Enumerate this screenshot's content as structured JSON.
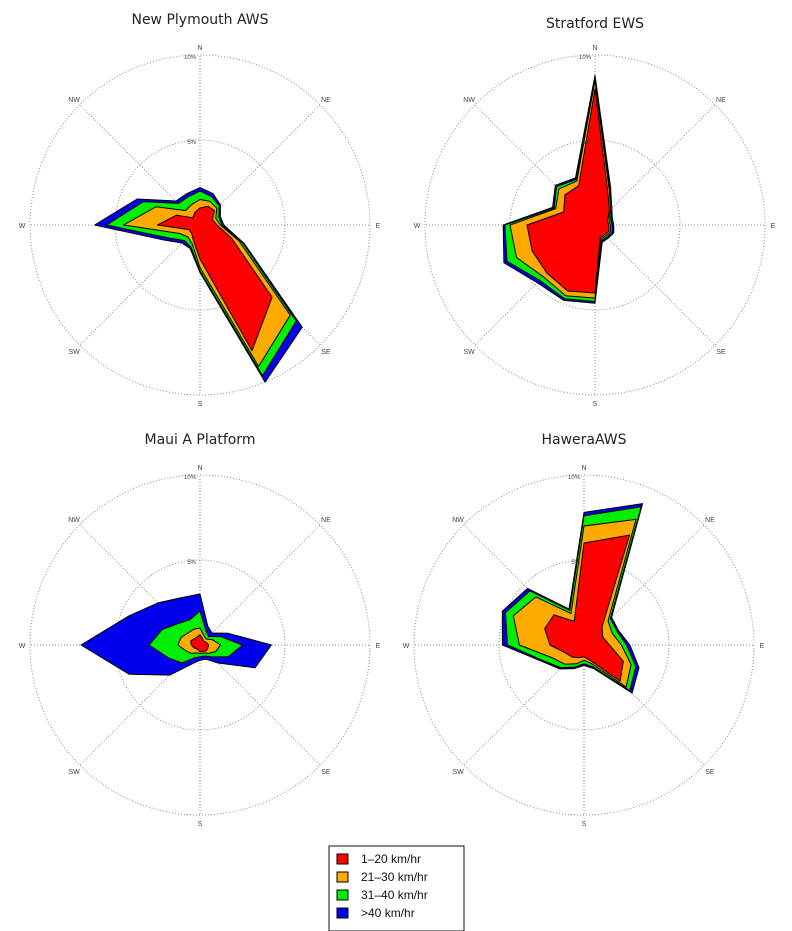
{
  "chart_data": {
    "type": "wind-rose",
    "directions": [
      "N",
      "NE",
      "E",
      "SE",
      "S",
      "SW",
      "W",
      "NW"
    ],
    "direction_angles_deg": [
      0,
      22.5,
      45,
      67.5,
      90,
      112.5,
      135,
      157.5,
      180,
      202.5,
      225,
      247.5,
      270,
      292.5,
      315,
      337.5
    ],
    "ring_labels": [
      "5%",
      "10%"
    ],
    "rmax": 10,
    "speed_classes": [
      {
        "name": "1-20 km/hr",
        "label": "1–20 km/hr",
        "color": "#ff0000"
      },
      {
        "name": "21-30 km/hr",
        "label": "21–30 km/hr",
        "color": "#ffaa00"
      },
      {
        "name": "31-40 km/hr",
        "label": "31–40 km/hr",
        "color": "#00ee00"
      },
      {
        "name": ">40 km/hr",
        "label": ">40 km/hr",
        "color": "#0000ee"
      }
    ],
    "roses": [
      {
        "title": "New Plymouth AWS",
        "cumulative": [
          [
            1.0,
            1.2,
            1.2,
            0.8,
            1.0,
            2.0,
            6.0,
            8.0,
            2.0,
            1.0,
            0.7,
            0.7,
            2.5,
            1.5,
            0.6,
            0.8
          ],
          [
            1.5,
            1.5,
            1.4,
            1.0,
            1.2,
            2.5,
            7.5,
            9.0,
            2.5,
            1.2,
            1.0,
            1.3,
            4.5,
            2.8,
            1.2,
            1.3
          ],
          [
            2.0,
            1.8,
            1.6,
            1.2,
            1.3,
            2.7,
            8.0,
            9.6,
            2.7,
            1.4,
            1.3,
            2.0,
            5.5,
            3.6,
            1.8,
            1.8
          ],
          [
            2.2,
            2.0,
            1.7,
            1.3,
            1.4,
            2.8,
            8.5,
            10.0,
            2.8,
            1.5,
            1.5,
            2.3,
            6.2,
            4.0,
            2.0,
            2.0
          ]
        ]
      },
      {
        "title": "Stratford EWS",
        "cumulative": [
          [
            8.0,
            2.0,
            1.2,
            0.8,
            0.8,
            0.9,
            0.8,
            0.8,
            4.0,
            4.2,
            4.0,
            4.0,
            4.0,
            2.0,
            2.5,
            2.5
          ],
          [
            8.5,
            2.2,
            1.3,
            0.9,
            0.9,
            1.0,
            0.9,
            0.9,
            4.3,
            4.5,
            4.3,
            5.0,
            5.0,
            2.5,
            3.0,
            2.8
          ],
          [
            8.7,
            2.3,
            1.4,
            1.0,
            1.0,
            1.1,
            1.0,
            1.0,
            4.5,
            4.7,
            4.6,
            5.6,
            5.3,
            2.6,
            3.2,
            2.9
          ],
          [
            8.8,
            2.4,
            1.4,
            1.1,
            1.1,
            1.2,
            1.1,
            1.1,
            4.6,
            4.8,
            4.8,
            5.8,
            5.4,
            2.7,
            3.3,
            3.0
          ]
        ]
      },
      {
        "title": "Maui A Platform",
        "cumulative": [
          [
            0.6,
            0.4,
            0.3,
            0.4,
            0.5,
            0.5,
            0.5,
            0.4,
            0.4,
            0.3,
            0.3,
            0.4,
            0.5,
            0.6,
            0.5,
            0.5
          ],
          [
            1.0,
            0.6,
            0.5,
            0.8,
            1.2,
            1.0,
            0.7,
            0.5,
            0.5,
            0.5,
            0.7,
            0.9,
            1.3,
            1.2,
            1.0,
            1.0
          ],
          [
            2.0,
            0.9,
            0.7,
            1.3,
            2.5,
            1.8,
            1.0,
            0.7,
            0.7,
            0.8,
            1.5,
            2.0,
            3.0,
            2.4,
            1.8,
            1.6
          ],
          [
            3.0,
            1.2,
            1.0,
            1.8,
            4.2,
            3.5,
            1.5,
            0.9,
            0.9,
            1.2,
            2.5,
            4.5,
            7.0,
            4.5,
            3.5,
            3.0
          ]
        ]
      },
      {
        "title": "HaweraAWS",
        "cumulative": [
          [
            6.0,
            7.0,
            1.5,
            1.2,
            1.5,
            2.5,
            3.0,
            1.0,
            0.7,
            0.8,
            1.0,
            1.2,
            2.0,
            2.5,
            2.5,
            1.5
          ],
          [
            7.0,
            8.0,
            2.0,
            1.8,
            2.2,
            3.0,
            3.5,
            1.2,
            0.9,
            1.2,
            1.6,
            2.0,
            3.8,
            4.5,
            4.0,
            2.0
          ],
          [
            7.6,
            8.8,
            2.2,
            2.1,
            2.5,
            3.3,
            3.8,
            1.4,
            1.1,
            1.4,
            1.9,
            2.5,
            4.5,
            5.0,
            4.5,
            2.2
          ],
          [
            7.8,
            9.0,
            2.3,
            2.2,
            2.7,
            3.5,
            4.0,
            1.5,
            1.2,
            1.5,
            2.0,
            2.6,
            4.8,
            5.2,
            4.7,
            2.3
          ]
        ]
      }
    ]
  }
}
